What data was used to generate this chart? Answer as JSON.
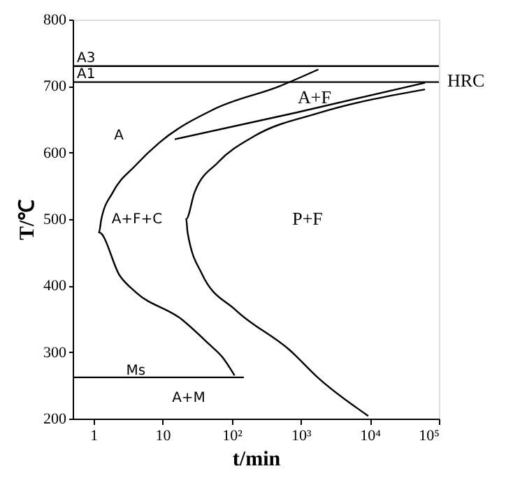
{
  "chart_data": {
    "type": "line",
    "xlabel": "t/min",
    "ylabel": "T/℃",
    "log": "x",
    "xlim": [
      0.5,
      100000
    ],
    "ylim": [
      200,
      800
    ],
    "xticks": [
      1,
      10,
      {
        "value": 100,
        "label": "10²"
      },
      {
        "value": 1000,
        "label": "10³"
      },
      {
        "value": 10000,
        "label": "10⁴"
      },
      {
        "value": 100000,
        "label": "10⁵"
      }
    ],
    "yticks": [
      200,
      300,
      400,
      500,
      600,
      700,
      800
    ],
    "grid": false,
    "marker": "none",
    "line_style": "solid",
    "series": [
      {
        "color": "#000000",
        "x": [
          1800,
          500,
          55,
          9,
          4,
          1.9,
          1.3,
          1.2,
          2.4,
          4.1,
          18.5,
          47,
          74,
          110
        ],
        "values": [
          725,
          700,
          665,
          615,
          580,
          540,
          500,
          480,
          415,
          390,
          350,
          312,
          292,
          265
        ]
      },
      {
        "color": "#000000",
        "x": [
          15,
          850,
          63000
        ],
        "values": [
          620,
          660,
          705
        ]
      },
      {
        "color": "#000000",
        "x": [
          63000,
          1900,
          215,
          63,
          29,
          22,
          23,
          37,
          115,
          710,
          1800,
          9500
        ],
        "values": [
          695,
          660,
          625,
          585,
          540,
          500,
          480,
          418,
          363,
          302,
          261,
          204
        ]
      },
      {
        "color": "#000000",
        "x": [
          0.5,
          150
        ],
        "values": [
          262,
          262
        ]
      }
    ],
    "ref_lines": [
      {
        "axis": "y",
        "value": 730,
        "label": "A3"
      },
      {
        "axis": "y",
        "value": 706,
        "label": "A1"
      }
    ],
    "annotations": [
      "A",
      "A+F+C",
      "P+F",
      "A+F",
      {
        "text": "Ms",
        "x": 4.1,
        "y": 272
      },
      "A+M",
      "HRC"
    ]
  }
}
